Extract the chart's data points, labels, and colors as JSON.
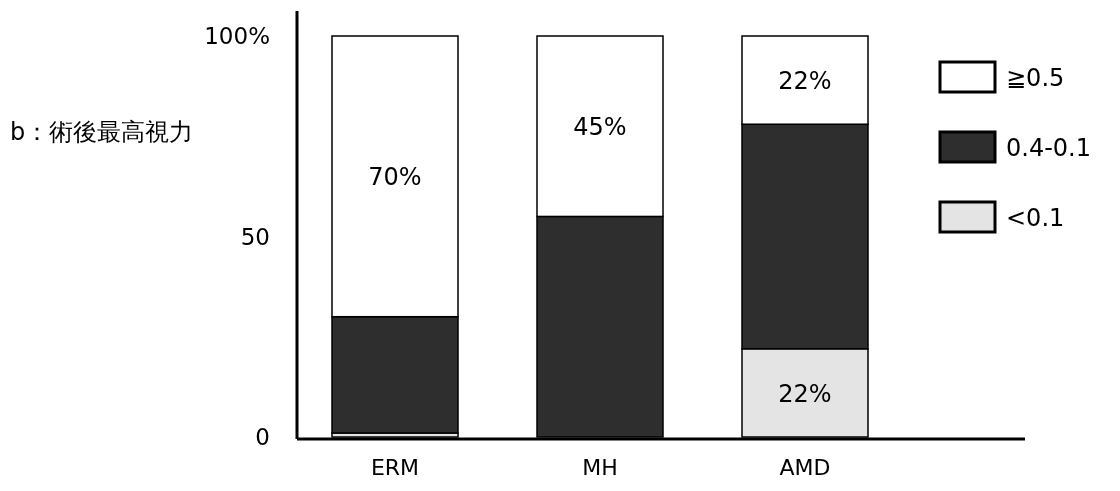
{
  "chart_data": {
    "type": "bar",
    "stacked": true,
    "title": "b：術後最高視力",
    "categories": [
      "ERM",
      "MH",
      "AMD"
    ],
    "series": [
      {
        "name": "<0.1",
        "color": "#e4e4e4",
        "values": [
          1,
          0,
          22
        ],
        "value_labels": [
          null,
          null,
          "22%"
        ]
      },
      {
        "name": "0.4-0.1",
        "color": "#2e2e2e",
        "values": [
          29,
          55,
          56
        ],
        "value_labels": [
          null,
          null,
          null
        ]
      },
      {
        "name": "≧0.5",
        "color": "#ffffff",
        "values": [
          70,
          45,
          22
        ],
        "value_labels": [
          "70%",
          "45%",
          "22%"
        ]
      }
    ],
    "ylim": [
      0,
      100
    ],
    "yticks": [
      0,
      50,
      {
        "value": 100,
        "label": "100%"
      }
    ],
    "legend": "top right"
  }
}
